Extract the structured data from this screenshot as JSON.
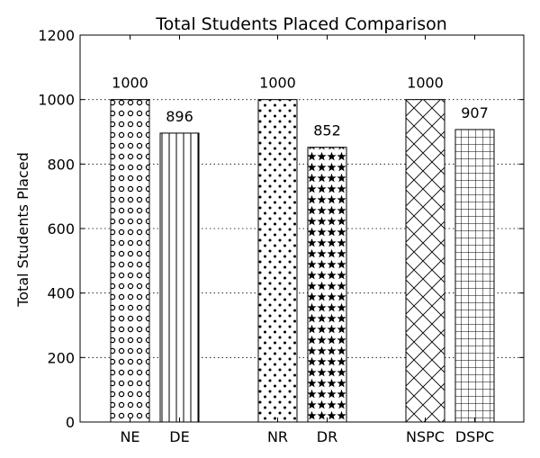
{
  "chart_data": {
    "type": "bar",
    "title": "Total Students Placed Comparison",
    "xlabel": "",
    "ylabel": "Total Students Placed",
    "ylim": [
      0,
      1200
    ],
    "yticks": [
      0,
      200,
      400,
      600,
      800,
      1000,
      1200
    ],
    "grid": "y-dotted",
    "categories": [
      "NE",
      "DE",
      "NR",
      "DR",
      "NSPC",
      "DSPC"
    ],
    "values": [
      1000,
      896,
      1000,
      852,
      1000,
      907
    ],
    "value_labels": [
      "1000",
      "896",
      "1000",
      "852",
      "1000",
      "907"
    ],
    "hatches": [
      "small-circles",
      "vertical-lines",
      "dots",
      "stars",
      "crosshatch-diagonal",
      "grid"
    ],
    "colors": {
      "bar_fill": "#ffffff",
      "bar_edge": "#000000",
      "grid": "#000000"
    }
  }
}
